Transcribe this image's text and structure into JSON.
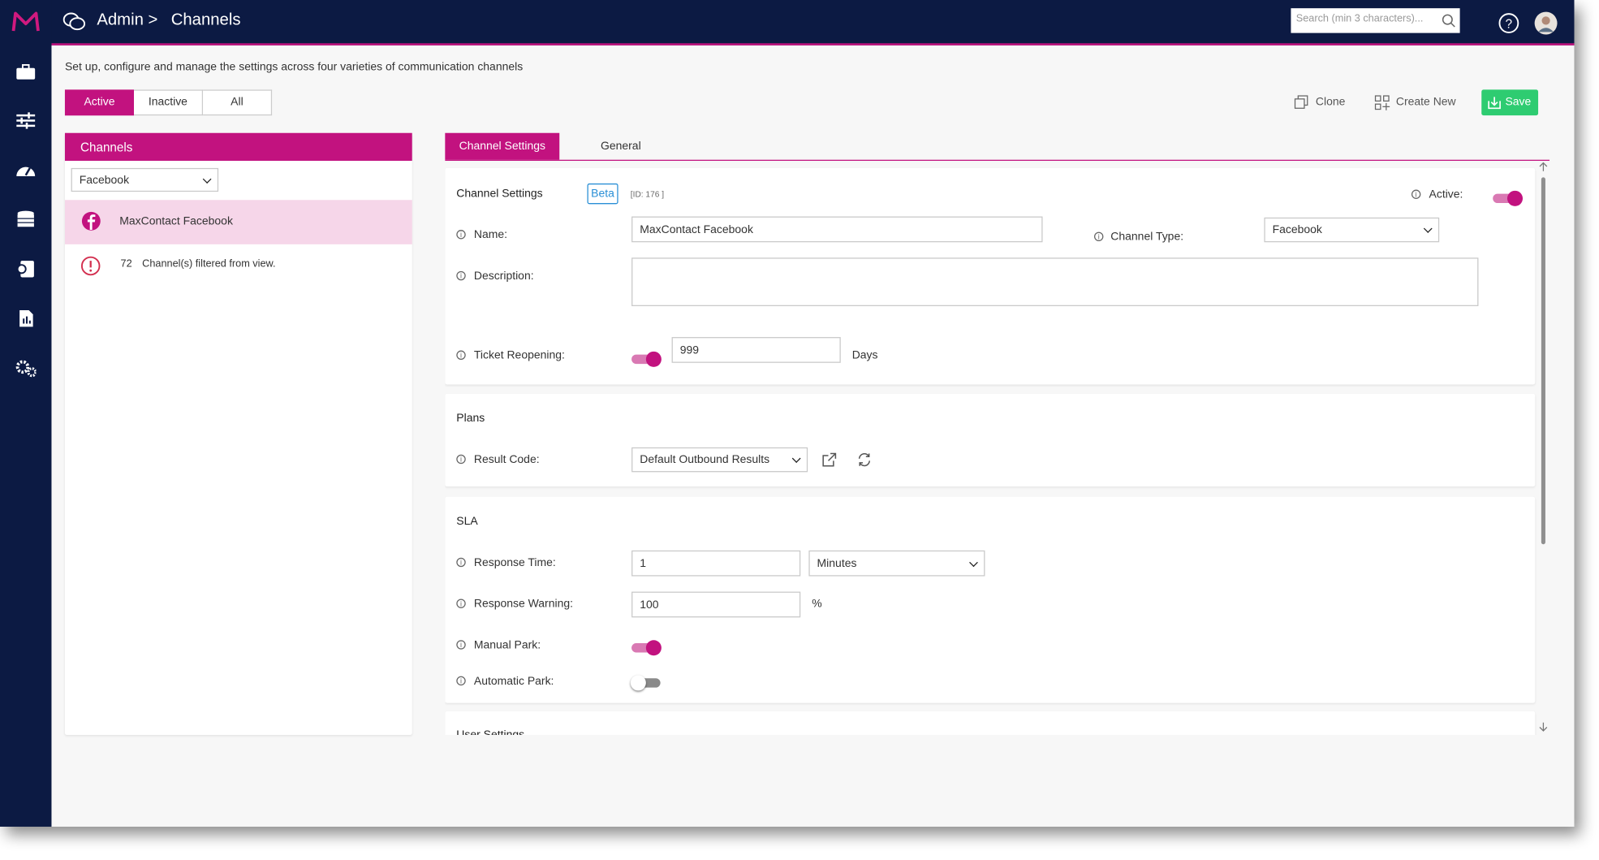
{
  "header": {
    "breadcrumb": "Admin >",
    "title": "Channels",
    "search_placeholder": "Search (min 3 characters)..."
  },
  "intro": "Set up, configure and manage the settings across four varieties of communication channels",
  "filter_tabs": [
    "Active",
    "Inactive",
    "All"
  ],
  "actions": [
    "Clone",
    "Create New",
    "Save"
  ],
  "channels_panel": {
    "title": "Channels",
    "type_filter": "Facebook",
    "items": [
      "MaxContact Facebook"
    ],
    "filtered_count": 72,
    "filtered_text": "Channel(s) filtered from view."
  },
  "tabs": [
    "Channel Settings",
    "General"
  ],
  "channel_settings": {
    "heading": "Channel Settings",
    "badge": "Beta",
    "id_text": "[ID: 176 ]",
    "active_label": "Active:",
    "active": true,
    "name_label": "Name:",
    "name": "MaxContact Facebook",
    "channel_type_label": "Channel Type:",
    "channel_type": "Facebook",
    "description_label": "Description:",
    "ticket_reopening_label": "Ticket Reopening:",
    "ticket_reopening_enabled": true,
    "ticket_reopening": 999,
    "days": "Days"
  },
  "plans": {
    "heading": "Plans",
    "result_code_label": "Result Code:",
    "result_code": "Default Outbound Results"
  },
  "sla": {
    "heading": "SLA",
    "response_time_label": "Response Time:",
    "response_time": 1,
    "response_time_unit": "Minutes",
    "response_warning_label": "Response Warning:",
    "response_warning": 100,
    "percent": "%",
    "manual_park_label": "Manual Park:",
    "manual_park": true,
    "automatic_park_label": "Automatic Park:",
    "automatic_park": false
  },
  "next_section": "User Settings"
}
